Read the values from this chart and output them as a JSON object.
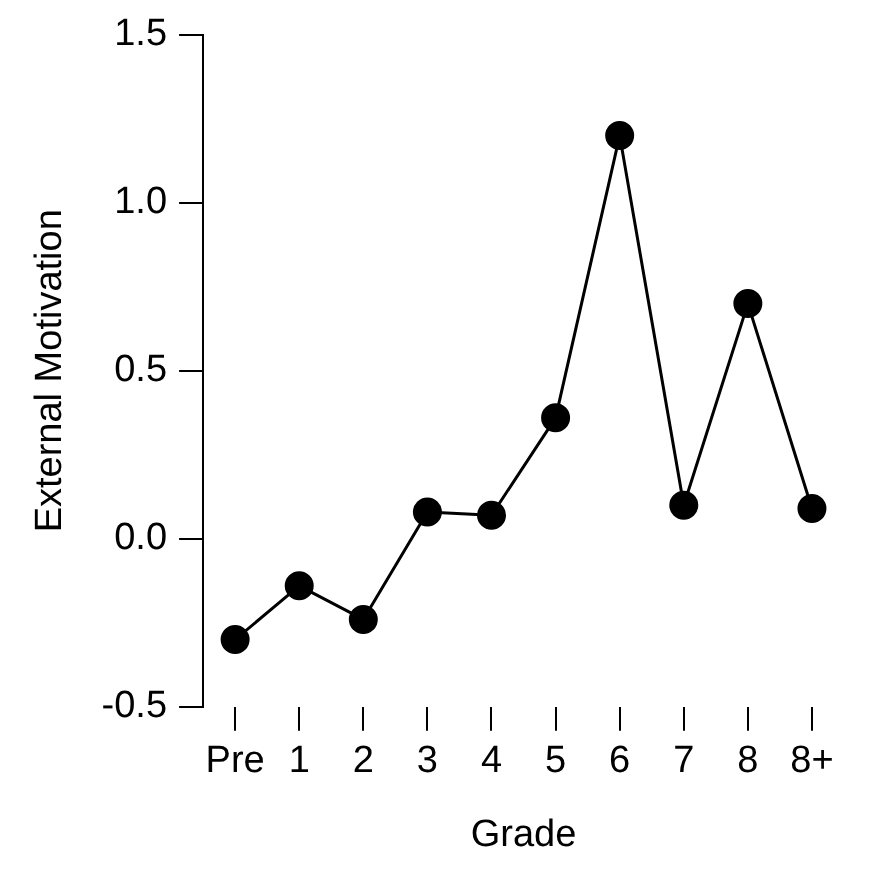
{
  "chart_data": {
    "type": "line",
    "xlabel": "Grade",
    "ylabel": "External Motivation",
    "categories": [
      "Pre",
      "1",
      "2",
      "3",
      "4",
      "5",
      "6",
      "7",
      "8",
      "8+"
    ],
    "series": [
      {
        "color": "#000000",
        "values": [
          -0.3,
          -0.14,
          -0.24,
          0.08,
          0.07,
          0.36,
          1.2,
          0.1,
          0.7,
          0.09
        ]
      }
    ],
    "ylim": [
      -0.5,
      1.5
    ],
    "yticks": [
      {
        "value": -0.5,
        "label": "-0.5"
      },
      {
        "value": 0,
        "label": "0.0"
      },
      {
        "value": 0.5,
        "label": "0.5"
      },
      {
        "value": 1,
        "label": "1.0"
      },
      {
        "value": 1.5,
        "label": "1.5"
      }
    ],
    "grid": false,
    "legend": false,
    "marker": "circle",
    "line_style": "solid"
  }
}
